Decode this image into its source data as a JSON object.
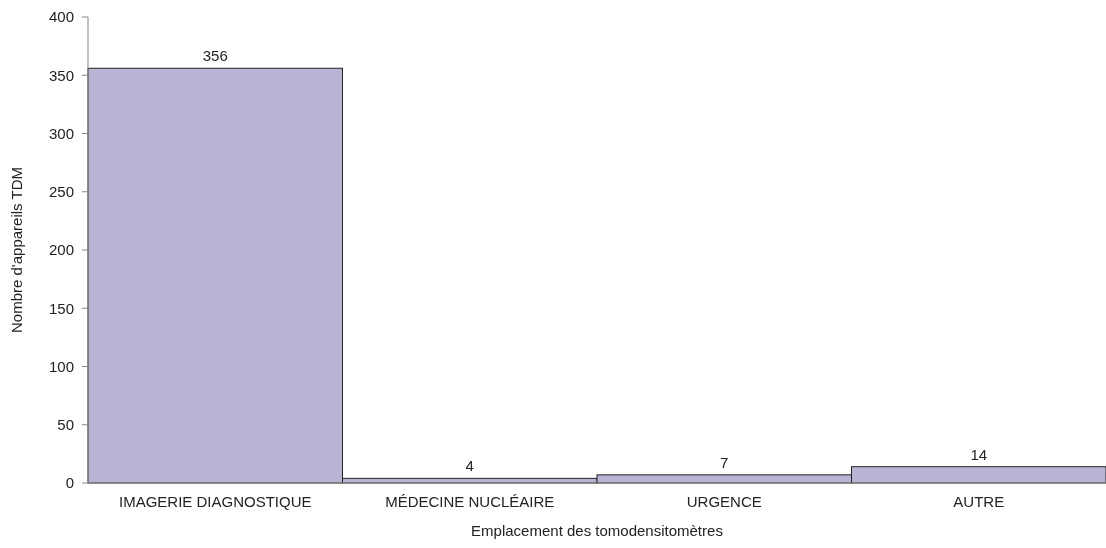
{
  "chart_data": {
    "type": "bar",
    "xlabel": "Emplacement des tomodensitomètres",
    "ylabel": "Nombre d'appareils TDM",
    "categories": [
      "IMAGERIE DIAGNOSTIQUE",
      "MÉDECINE NUCLÉAIRE",
      "URGENCE",
      "AUTRE"
    ],
    "values": [
      356,
      4,
      7,
      14
    ],
    "color": "#bab3d4",
    "ylim": [
      0,
      400
    ],
    "yticks": [
      0,
      50,
      100,
      150,
      200,
      250,
      300,
      350,
      400
    ],
    "grid": false,
    "data_labels": true
  }
}
